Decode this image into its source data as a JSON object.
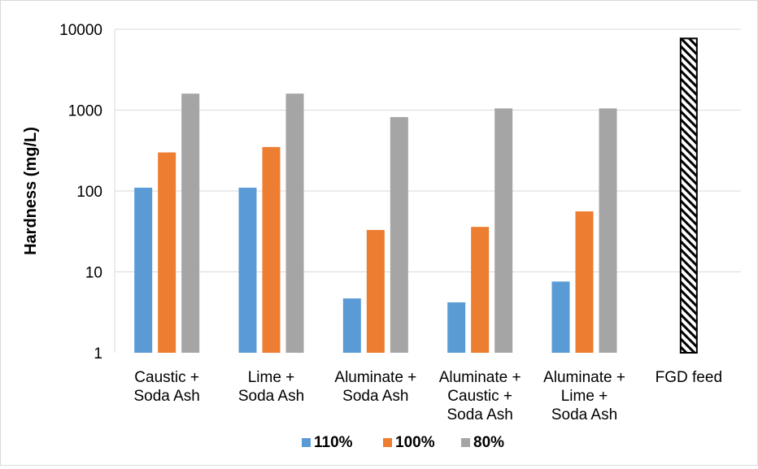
{
  "chart_data": {
    "type": "bar",
    "y_scale": "log",
    "ylim": [
      1,
      10000
    ],
    "ylabel": "Hardness (mg/L)",
    "xlabel": "",
    "y_ticks": [
      "1",
      "10",
      "100",
      "1000",
      "10000"
    ],
    "grid": "horizontal",
    "legend_position": "bottom",
    "categories": [
      [
        "Caustic +",
        "Soda Ash"
      ],
      [
        "Lime +",
        "Soda Ash"
      ],
      [
        "Aluminate +",
        "Soda Ash"
      ],
      [
        "Aluminate +",
        "Caustic +",
        "Soda Ash"
      ],
      [
        "Aluminate +",
        "Lime +",
        "Soda Ash"
      ],
      [
        "FGD feed"
      ]
    ],
    "series": [
      {
        "name": "110%",
        "color": "#5b9bd5",
        "values": [
          110,
          110,
          4.7,
          4.2,
          7.6,
          null
        ]
      },
      {
        "name": "100%",
        "color": "#ed7d31",
        "values": [
          300,
          350,
          33,
          36,
          56,
          null
        ]
      },
      {
        "name": "80%",
        "color": "#a5a5a5",
        "values": [
          1600,
          1600,
          820,
          1050,
          1050,
          null
        ]
      }
    ],
    "feed": {
      "category_index": 5,
      "value": 7700,
      "pattern": "diagonal-hatch",
      "color": "#000000"
    }
  }
}
